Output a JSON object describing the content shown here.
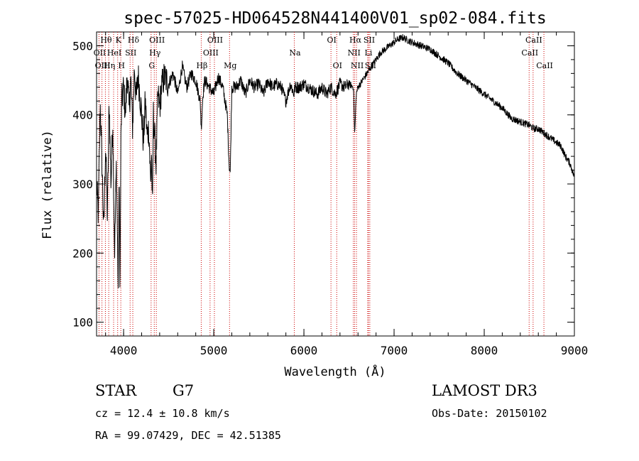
{
  "chart_data": {
    "type": "line",
    "title": "spec-57025-HD064528N441400V01_sp02-084.fits",
    "xlabel": "Wavelength (Å)",
    "ylabel": "Flux (relative)",
    "xlim": [
      3700,
      9000
    ],
    "ylim": [
      80,
      520
    ],
    "xticks": [
      4000,
      5000,
      6000,
      7000,
      8000,
      9000
    ],
    "yticks": [
      100,
      200,
      300,
      400,
      500
    ],
    "line_color": "#000000",
    "marker_color": "#cc0000",
    "series": [
      {
        "name": "spectrum",
        "x": [
          3700,
          3720,
          3740,
          3760,
          3780,
          3800,
          3820,
          3840,
          3860,
          3880,
          3900,
          3920,
          3940,
          3950,
          3960,
          3970,
          3980,
          4000,
          4020,
          4040,
          4060,
          4080,
          4100,
          4120,
          4140,
          4160,
          4180,
          4200,
          4220,
          4240,
          4260,
          4280,
          4300,
          4310,
          4320,
          4330,
          4340,
          4360,
          4380,
          4400,
          4420,
          4450,
          4500,
          4550,
          4600,
          4650,
          4700,
          4750,
          4800,
          4850,
          4861,
          4880,
          4900,
          4950,
          5000,
          5050,
          5100,
          5150,
          5170,
          5183,
          5200,
          5250,
          5300,
          5350,
          5400,
          5450,
          5500,
          5550,
          5600,
          5650,
          5700,
          5750,
          5800,
          5850,
          5890,
          5900,
          5950,
          6000,
          6050,
          6100,
          6150,
          6200,
          6250,
          6300,
          6350,
          6400,
          6450,
          6500,
          6550,
          6563,
          6580,
          6600,
          6650,
          6700,
          6750,
          6800,
          6850,
          6900,
          6950,
          7000,
          7050,
          7100,
          7150,
          7200,
          7300,
          7400,
          7500,
          7600,
          7700,
          7800,
          7900,
          8000,
          8100,
          8200,
          8300,
          8400,
          8500,
          8550,
          8600,
          8650,
          8700,
          8750,
          8800,
          8850,
          8900,
          8950,
          9000
        ],
        "y": [
          300,
          255,
          420,
          330,
          230,
          360,
          250,
          420,
          300,
          390,
          200,
          330,
          150,
          310,
          140,
          360,
          420,
          440,
          400,
          460,
          410,
          450,
          380,
          470,
          420,
          460,
          430,
          400,
          360,
          420,
          370,
          380,
          300,
          350,
          250,
          400,
          380,
          330,
          430,
          410,
          440,
          455,
          445,
          460,
          430,
          470,
          440,
          460,
          450,
          420,
          380,
          430,
          450,
          440,
          430,
          455,
          440,
          400,
          330,
          315,
          440,
          440,
          450,
          430,
          450,
          440,
          445,
          430,
          450,
          440,
          445,
          440,
          420,
          445,
          430,
          440,
          440,
          445,
          440,
          435,
          430,
          440,
          430,
          440,
          430,
          445,
          440,
          445,
          440,
          370,
          430,
          440,
          450,
          460,
          470,
          480,
          490,
          495,
          500,
          505,
          510,
          512,
          508,
          505,
          500,
          495,
          485,
          475,
          460,
          450,
          440,
          430,
          420,
          410,
          395,
          390,
          385,
          380,
          380,
          375,
          370,
          365,
          360,
          355,
          340,
          330,
          310
        ]
      }
    ],
    "lines": [
      {
        "name": "Hθ",
        "wavelength": 3798,
        "row": 1
      },
      {
        "name": "OII",
        "wavelength": 3727,
        "row": 2
      },
      {
        "name": "OIII",
        "wavelength": 3760,
        "row": 3
      },
      {
        "name": "Hη",
        "wavelength": 3835,
        "row": 3
      },
      {
        "name": "HeI",
        "wavelength": 3889,
        "row": 2
      },
      {
        "name": "K",
        "wavelength": 3934,
        "row": 1
      },
      {
        "name": "H",
        "wavelength": 3969,
        "row": 3
      },
      {
        "name": "SII",
        "wavelength": 4072,
        "row": 2
      },
      {
        "name": "Hδ",
        "wavelength": 4102,
        "row": 1
      },
      {
        "name": "OIII",
        "wavelength": 4363,
        "row": 1
      },
      {
        "name": "Hγ",
        "wavelength": 4340,
        "row": 2
      },
      {
        "name": "G",
        "wavelength": 4305,
        "row": 3
      },
      {
        "name": "Hβ",
        "wavelength": 4861,
        "row": 3
      },
      {
        "name": "OIII",
        "wavelength": 5007,
        "row": 1
      },
      {
        "name": "OIII",
        "wavelength": 4959,
        "row": 2
      },
      {
        "name": "Mg",
        "wavelength": 5175,
        "row": 3
      },
      {
        "name": "Na",
        "wavelength": 5893,
        "row": 2
      },
      {
        "name": "OI",
        "wavelength": 6300,
        "row": 1
      },
      {
        "name": "OI",
        "wavelength": 6364,
        "row": 3
      },
      {
        "name": "Hα",
        "wavelength": 6563,
        "row": 1
      },
      {
        "name": "NII",
        "wavelength": 6548,
        "row": 2
      },
      {
        "name": "NII",
        "wavelength": 6583,
        "row": 3
      },
      {
        "name": "SII",
        "wavelength": 6716,
        "row": 1
      },
      {
        "name": "Li",
        "wavelength": 6708,
        "row": 2
      },
      {
        "name": "SII",
        "wavelength": 6731,
        "row": 3
      },
      {
        "name": "CaII",
        "wavelength": 8542,
        "row": 1
      },
      {
        "name": "CaII",
        "wavelength": 8498,
        "row": 2
      },
      {
        "name": "CaII",
        "wavelength": 8662,
        "row": 3
      }
    ]
  },
  "info": {
    "object_class": "STAR",
    "subclass": "G7",
    "redshift": "cz = 12.4 ± 10.8 km/s",
    "coords": "RA =  99.07429, DEC =  42.51385",
    "survey": "LAMOST DR3",
    "obs_date": "Obs-Date: 20150102"
  }
}
